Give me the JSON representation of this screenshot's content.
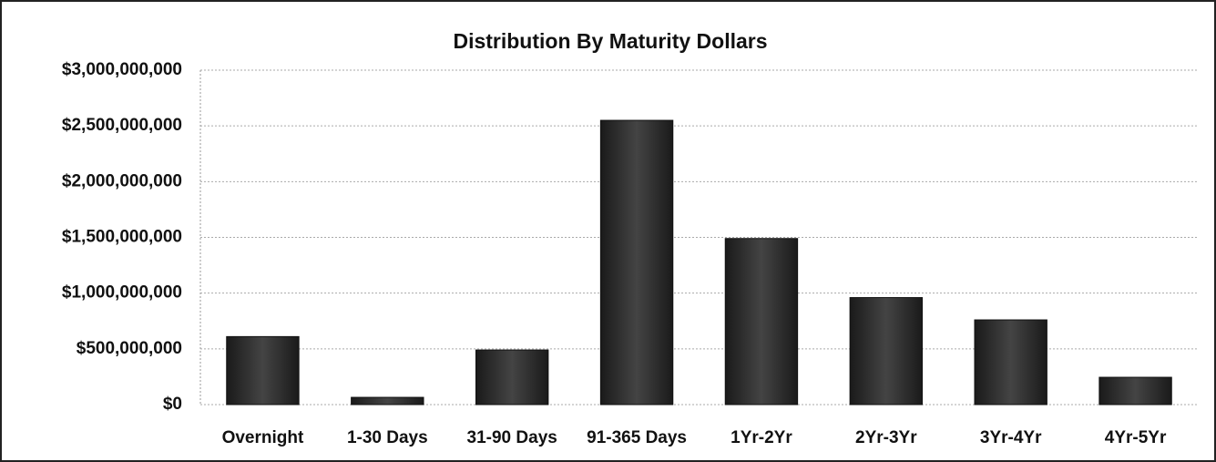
{
  "chart_data": {
    "type": "bar",
    "title": "Distribution By Maturity Dollars",
    "categories": [
      "Overnight",
      "1-30 Days",
      "31-90 Days",
      "91-365 Days",
      "1Yr-2Yr",
      "2Yr-3Yr",
      "3Yr-4Yr",
      "4Yr-5Yr"
    ],
    "values": [
      610000000,
      65000000,
      490000000,
      2550000000,
      1490000000,
      960000000,
      760000000,
      245000000
    ],
    "color": "#2e2e2e",
    "ylim": [
      0,
      3000000000
    ],
    "yticks": [
      {
        "value": 0,
        "label": "$0"
      },
      {
        "value": 500000000,
        "label": "$500,000,000"
      },
      {
        "value": 1000000000,
        "label": "$1,000,000,000"
      },
      {
        "value": 1500000000,
        "label": "$1,500,000,000"
      },
      {
        "value": 2000000000,
        "label": "$2,000,000,000"
      },
      {
        "value": 2500000000,
        "label": "$2,500,000,000"
      },
      {
        "value": 3000000000,
        "label": "$3,000,000,000"
      }
    ],
    "grid": true
  }
}
